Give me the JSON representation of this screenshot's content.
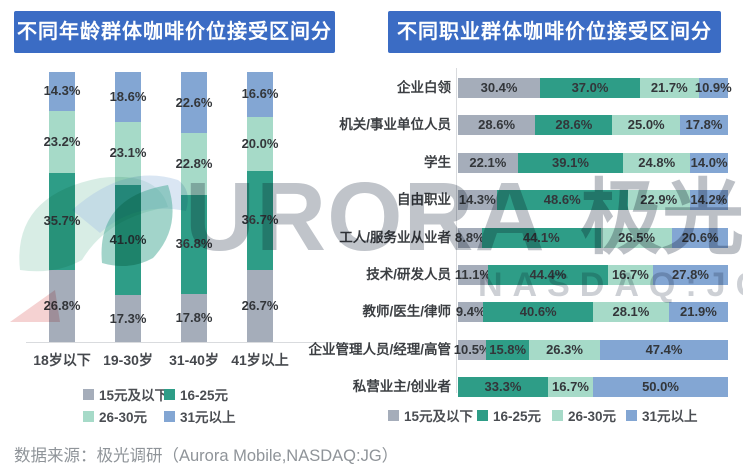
{
  "footer": {
    "text": "数据来源：极光调研（Aurora Mobile,NASDAQ:JG）"
  },
  "watermark": {
    "brand": "URORA",
    "brand_cjk": "极光",
    "ticker": "NASDAQ:JG"
  },
  "colors": {
    "banner_blue": "#3B6CC4",
    "price_under_15": "#A5ADBA",
    "price_16_25": "#2E9D87",
    "price_26_30": "#A6DAC8",
    "price_31_plus": "#83A6D3"
  },
  "chart_data": [
    {
      "type": "bar",
      "orientation": "vertical",
      "stacked": true,
      "title": "不同年龄群体咖啡价位接受区间分布",
      "categories": [
        "18岁以下",
        "19-30岁",
        "31-40岁",
        "41岁以上"
      ],
      "series": [
        {
          "name": "15元及以下",
          "color": "#A5ADBA",
          "values": [
            26.8,
            17.3,
            17.8,
            26.7
          ]
        },
        {
          "name": "16-25元",
          "color": "#2E9D87",
          "values": [
            35.7,
            41.0,
            36.8,
            36.7
          ]
        },
        {
          "name": "26-30元",
          "color": "#A6DAC8",
          "values": [
            23.2,
            23.1,
            22.8,
            20.0
          ]
        },
        {
          "name": "31元以上",
          "color": "#83A6D3",
          "values": [
            14.3,
            18.6,
            22.6,
            16.6
          ]
        }
      ],
      "value_format": "percent_one_decimal",
      "ylim": [
        0,
        100
      ],
      "legend_position": "bottom"
    },
    {
      "type": "bar",
      "orientation": "horizontal",
      "stacked": true,
      "title": "不同职业群体咖啡价位接受区间分布",
      "categories": [
        "企业白领",
        "机关/事业单位人员",
        "学生",
        "自由职业",
        "工人/服务业从业者",
        "技术/研发人员",
        "教师/医生/律师",
        "企业管理人员/经理/高管",
        "私营业主/创业者"
      ],
      "series": [
        {
          "name": "15元及以下",
          "color": "#A5ADBA",
          "values": [
            30.4,
            28.6,
            22.1,
            14.3,
            8.8,
            11.1,
            9.4,
            10.5,
            0
          ]
        },
        {
          "name": "16-25元",
          "color": "#2E9D87",
          "values": [
            37.0,
            28.6,
            39.1,
            48.6,
            44.1,
            44.4,
            40.6,
            15.8,
            33.3
          ]
        },
        {
          "name": "26-30元",
          "color": "#A6DAC8",
          "values": [
            21.7,
            25.0,
            24.8,
            22.9,
            26.5,
            16.7,
            28.1,
            26.3,
            16.7
          ]
        },
        {
          "name": "31元以上",
          "color": "#83A6D3",
          "values": [
            10.9,
            17.8,
            14.0,
            14.2,
            20.6,
            27.8,
            21.9,
            47.4,
            50.0
          ]
        }
      ],
      "value_format": "percent_one_decimal",
      "xlim": [
        0,
        100
      ],
      "legend_position": "bottom"
    }
  ]
}
